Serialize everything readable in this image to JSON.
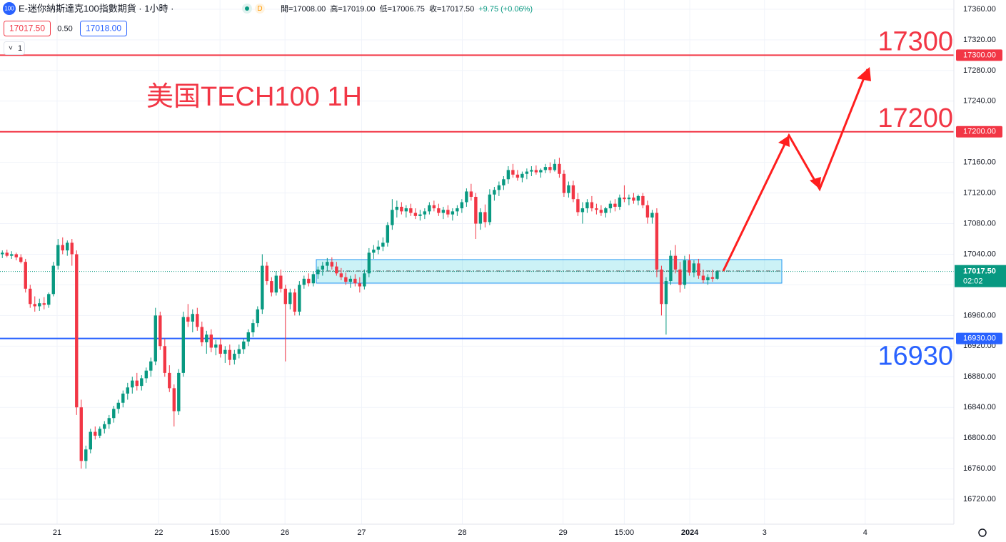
{
  "header": {
    "icon": "100",
    "symbol": "E-迷你納斯達克100指數期貨 · 1小時 ·",
    "badge": "D",
    "ohlc": [
      "開=17008.00",
      "高=17019.00",
      "低=17006.75",
      "收=17017.50",
      "+9.75 (+0.06%)"
    ],
    "sell": "17017.50",
    "spread": "0.50",
    "buy": "17018.00",
    "indicator_count": "1"
  },
  "chart_data": {
    "type": "candlestick",
    "title": "美国TECH100 1H",
    "up_color": "#089981",
    "down_color": "#f23645",
    "grid": true,
    "xlim": [
      -0.5,
      205
    ],
    "ylim": [
      16687.4,
      17372.1
    ],
    "xticks": [
      {
        "value": 11.8,
        "label": "21"
      },
      {
        "value": 33.7,
        "label": "22"
      },
      {
        "value": 46.9,
        "label": "15:00"
      },
      {
        "value": 60.9,
        "label": "26"
      },
      {
        "value": 77.4,
        "label": "27"
      },
      {
        "value": 99.1,
        "label": "28"
      },
      {
        "value": 120.8,
        "label": "29"
      },
      {
        "value": 134.0,
        "label": "15:00"
      },
      {
        "value": 148.1,
        "label": "2024"
      },
      {
        "value": 164.2,
        "label": "3"
      },
      {
        "value": 185.9,
        "label": "4"
      }
    ],
    "yticks": [
      {
        "value": 16720,
        "label": "16720.00"
      },
      {
        "value": 16760,
        "label": "16760.00"
      },
      {
        "value": 16800,
        "label": "16800.00"
      },
      {
        "value": 16840,
        "label": "16840.00"
      },
      {
        "value": 16880,
        "label": "16880.00"
      },
      {
        "value": 16920,
        "label": "16920.00"
      },
      {
        "value": 16960,
        "label": "16960.00"
      },
      {
        "value": 17000,
        "label": "17000.00"
      },
      {
        "value": 17040,
        "label": "17040.00"
      },
      {
        "value": 17080,
        "label": "17080.00"
      },
      {
        "value": 17120,
        "label": "17120.00"
      },
      {
        "value": 17160,
        "label": "17160.00"
      },
      {
        "value": 17200,
        "label": "17200.00"
      },
      {
        "value": 17240,
        "label": "17240.00"
      },
      {
        "value": 17280,
        "label": "17280.00"
      },
      {
        "value": 17320,
        "label": "17320.00"
      },
      {
        "value": 17360,
        "label": "17360.00"
      }
    ],
    "hlines": [
      {
        "value": 17300,
        "label": "17300.00",
        "note": "17300",
        "color": "#f23645"
      },
      {
        "value": 17200,
        "label": "17200.00",
        "note": "17200",
        "color": "#f23645"
      },
      {
        "value": 16930,
        "label": "16930.00",
        "note": "16930",
        "color": "#2962ff"
      }
    ],
    "last_price": {
      "value": 17017.5,
      "label": "17017.50",
      "countdown": "02:02",
      "color": "#089981"
    },
    "ohlc": [
      [
        17040,
        17045,
        17035,
        17042
      ],
      [
        17042,
        17046,
        17036,
        17038
      ],
      [
        17038,
        17044,
        17034,
        17040
      ],
      [
        17040,
        17042,
        17032,
        17036
      ],
      [
        17036,
        17040,
        17028,
        17030
      ],
      [
        17030,
        17034,
        16990,
        16995
      ],
      [
        16995,
        17000,
        16970,
        16975
      ],
      [
        16975,
        16985,
        16965,
        16972
      ],
      [
        16972,
        16982,
        16966,
        16976
      ],
      [
        16976,
        16984,
        16968,
        16974
      ],
      [
        16974,
        16990,
        16970,
        16988
      ],
      [
        16988,
        17030,
        16985,
        17025
      ],
      [
        17025,
        17060,
        17020,
        17052
      ],
      [
        17052,
        17062,
        17040,
        17045
      ],
      [
        17045,
        17058,
        17038,
        17055
      ],
      [
        17055,
        17060,
        17025,
        17040
      ],
      [
        17040,
        17045,
        16830,
        16840
      ],
      [
        16840,
        16850,
        16760,
        16770
      ],
      [
        16770,
        16790,
        16760,
        16785
      ],
      [
        16785,
        16812,
        16780,
        16808
      ],
      [
        16808,
        16815,
        16798,
        16803
      ],
      [
        16803,
        16815,
        16800,
        16812
      ],
      [
        16812,
        16822,
        16806,
        16818
      ],
      [
        16818,
        16830,
        16812,
        16826
      ],
      [
        16826,
        16842,
        16820,
        16838
      ],
      [
        16838,
        16850,
        16832,
        16846
      ],
      [
        16846,
        16862,
        16840,
        16858
      ],
      [
        16858,
        16872,
        16850,
        16866
      ],
      [
        16866,
        16880,
        16858,
        16875
      ],
      [
        16875,
        16885,
        16862,
        16868
      ],
      [
        16868,
        16882,
        16862,
        16878
      ],
      [
        16878,
        16892,
        16872,
        16888
      ],
      [
        16888,
        16905,
        16880,
        16900
      ],
      [
        16900,
        16970,
        16895,
        16960
      ],
      [
        16960,
        16965,
        16915,
        16920
      ],
      [
        16920,
        16930,
        16880,
        16885
      ],
      [
        16885,
        16895,
        16860,
        16865
      ],
      [
        16865,
        16870,
        16815,
        16835
      ],
      [
        16835,
        16890,
        16830,
        16885
      ],
      [
        16885,
        16965,
        16880,
        16958
      ],
      [
        16958,
        16975,
        16945,
        16952
      ],
      [
        16952,
        16968,
        16938,
        16962
      ],
      [
        16962,
        16970,
        16940,
        16945
      ],
      [
        16945,
        16952,
        16920,
        16925
      ],
      [
        16925,
        16940,
        16910,
        16935
      ],
      [
        16935,
        16942,
        16912,
        16918
      ],
      [
        16918,
        16928,
        16908,
        16922
      ],
      [
        16922,
        16930,
        16905,
        16910
      ],
      [
        16910,
        16920,
        16898,
        16915
      ],
      [
        16915,
        16922,
        16895,
        16902
      ],
      [
        16902,
        16915,
        16896,
        16910
      ],
      [
        16910,
        16922,
        16904,
        16916
      ],
      [
        16916,
        16930,
        16910,
        16926
      ],
      [
        16926,
        16942,
        16920,
        16938
      ],
      [
        16938,
        16955,
        16932,
        16950
      ],
      [
        16950,
        16972,
        16945,
        16968
      ],
      [
        16968,
        17040,
        16962,
        17025
      ],
      [
        17025,
        17030,
        17000,
        17005
      ],
      [
        17005,
        17010,
        16985,
        16990
      ],
      [
        16990,
        17018,
        16986,
        17012
      ],
      [
        17012,
        17020,
        16990,
        16995
      ],
      [
        16995,
        17000,
        16900,
        16975
      ],
      [
        16975,
        16995,
        16968,
        16990
      ],
      [
        16990,
        16995,
        16960,
        16965
      ],
      [
        16965,
        17005,
        16960,
        17000
      ],
      [
        17000,
        17012,
        16995,
        17008
      ],
      [
        17008,
        17015,
        16998,
        17002
      ],
      [
        17002,
        17018,
        16998,
        17014
      ],
      [
        17014,
        17024,
        17008,
        17020
      ],
      [
        17020,
        17030,
        17012,
        17025
      ],
      [
        17025,
        17035,
        17018,
        17030
      ],
      [
        17030,
        17036,
        17020,
        17024
      ],
      [
        17024,
        17030,
        17012,
        17015
      ],
      [
        17015,
        17022,
        17006,
        17010
      ],
      [
        17010,
        17016,
        17000,
        17004
      ],
      [
        17004,
        17012,
        16996,
        17008
      ],
      [
        17008,
        17014,
        16998,
        17002
      ],
      [
        17002,
        17010,
        16990,
        16998
      ],
      [
        16998,
        17020,
        16994,
        17015
      ],
      [
        17015,
        17048,
        17010,
        17042
      ],
      [
        17042,
        17052,
        17034,
        17046
      ],
      [
        17046,
        17058,
        17040,
        17050
      ],
      [
        17050,
        17062,
        17044,
        17055
      ],
      [
        17055,
        17082,
        17050,
        17078
      ],
      [
        17078,
        17112,
        17072,
        17098
      ],
      [
        17098,
        17110,
        17088,
        17102
      ],
      [
        17102,
        17108,
        17092,
        17096
      ],
      [
        17096,
        17104,
        17088,
        17100
      ],
      [
        17100,
        17106,
        17090,
        17094
      ],
      [
        17094,
        17100,
        17086,
        17090
      ],
      [
        17090,
        17098,
        17084,
        17092
      ],
      [
        17092,
        17100,
        17086,
        17096
      ],
      [
        17096,
        17108,
        17092,
        17104
      ],
      [
        17104,
        17110,
        17096,
        17100
      ],
      [
        17100,
        17106,
        17090,
        17094
      ],
      [
        17094,
        17102,
        17086,
        17098
      ],
      [
        17098,
        17104,
        17088,
        17092
      ],
      [
        17092,
        17100,
        17084,
        17096
      ],
      [
        17096,
        17104,
        17090,
        17100
      ],
      [
        17100,
        17112,
        17094,
        17108
      ],
      [
        17108,
        17126,
        17102,
        17122
      ],
      [
        17122,
        17132,
        17110,
        17115
      ],
      [
        17115,
        17120,
        17060,
        17080
      ],
      [
        17080,
        17100,
        17072,
        17095
      ],
      [
        17095,
        17105,
        17075,
        17082
      ],
      [
        17082,
        17125,
        17078,
        17118
      ],
      [
        17118,
        17128,
        17110,
        17124
      ],
      [
        17124,
        17135,
        17116,
        17130
      ],
      [
        17130,
        17142,
        17124,
        17138
      ],
      [
        17138,
        17155,
        17132,
        17150
      ],
      [
        17150,
        17158,
        17140,
        17144
      ],
      [
        17144,
        17150,
        17136,
        17140
      ],
      [
        17140,
        17148,
        17134,
        17145
      ],
      [
        17145,
        17152,
        17138,
        17148
      ],
      [
        17148,
        17155,
        17142,
        17150
      ],
      [
        17150,
        17156,
        17144,
        17147
      ],
      [
        17147,
        17152,
        17140,
        17150
      ],
      [
        17150,
        17158,
        17146,
        17154
      ],
      [
        17154,
        17160,
        17146,
        17150
      ],
      [
        17150,
        17164,
        17148,
        17158
      ],
      [
        17158,
        17166,
        17140,
        17145
      ],
      [
        17145,
        17150,
        17115,
        17120
      ],
      [
        17120,
        17135,
        17114,
        17130
      ],
      [
        17130,
        17136,
        17108,
        17112
      ],
      [
        17112,
        17120,
        17090,
        17095
      ],
      [
        17095,
        17108,
        17080,
        17100
      ],
      [
        17100,
        17112,
        17094,
        17108
      ],
      [
        17108,
        17116,
        17096,
        17100
      ],
      [
        17100,
        17106,
        17092,
        17098
      ],
      [
        17098,
        17104,
        17090,
        17094
      ],
      [
        17094,
        17102,
        17088,
        17100
      ],
      [
        17100,
        17110,
        17094,
        17106
      ],
      [
        17106,
        17112,
        17096,
        17102
      ],
      [
        17102,
        17118,
        17098,
        17114
      ],
      [
        17114,
        17130,
        17108,
        17112
      ],
      [
        17112,
        17118,
        17104,
        17114
      ],
      [
        17114,
        17120,
        17106,
        17110
      ],
      [
        17110,
        17118,
        17104,
        17116
      ],
      [
        17116,
        17120,
        17100,
        17104
      ],
      [
        17104,
        17110,
        17080,
        17088
      ],
      [
        17088,
        17098,
        17080,
        17094
      ],
      [
        17094,
        17100,
        17010,
        17020
      ],
      [
        17020,
        17025,
        16960,
        16975
      ],
      [
        16975,
        17010,
        16935,
        17005
      ],
      [
        17005,
        17045,
        17000,
        17038
      ],
      [
        17038,
        17052,
        17015,
        17020
      ],
      [
        17020,
        17030,
        16990,
        17000
      ],
      [
        17000,
        17038,
        16995,
        17032
      ],
      [
        17032,
        17040,
        17012,
        17016
      ],
      [
        17016,
        17032,
        17010,
        17028
      ],
      [
        17028,
        17034,
        17008,
        17012
      ],
      [
        17012,
        17020,
        17002,
        17006
      ],
      [
        17006,
        17014,
        17000,
        17010
      ],
      [
        17010,
        17020,
        17004,
        17008
      ],
      [
        17008,
        17019,
        17006.75,
        17017.5
      ]
    ]
  }
}
